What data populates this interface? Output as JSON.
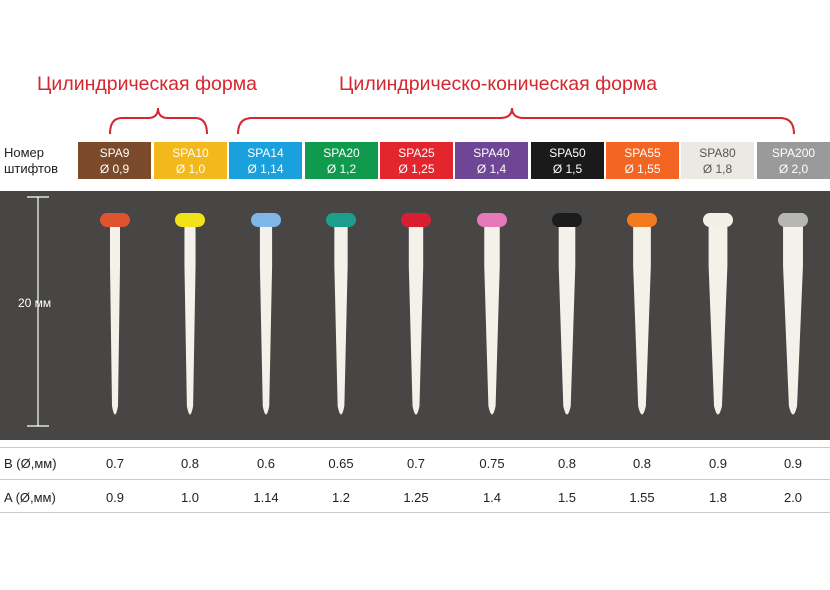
{
  "groups": {
    "cylindrical": "Цилиндрическая форма",
    "conical": "Цилиндрическо-коническая форма"
  },
  "header_label_line1": "Номер",
  "header_label_line2": "штифтов",
  "posts": [
    {
      "code": "SPA9",
      "dia": "Ø 0,9",
      "color": "#7a4a2a",
      "ring": "#e0532f",
      "b": "0.7",
      "a": "0.9"
    },
    {
      "code": "SPA10",
      "dia": "Ø 1,0",
      "color": "#f2b81c",
      "ring": "#f2e21a",
      "b": "0.8",
      "a": "1.0"
    },
    {
      "code": "SPA14",
      "dia": "Ø 1,14",
      "color": "#1aa0dc",
      "ring": "#7fb6e8",
      "b": "0.6",
      "a": "1.14"
    },
    {
      "code": "SPA20",
      "dia": "Ø 1,2",
      "color": "#0f9a4e",
      "ring": "#1d9e8c",
      "b": "0.65",
      "a": "1.2"
    },
    {
      "code": "SPA25",
      "dia": "Ø 1,25",
      "color": "#e3262e",
      "ring": "#d81f32",
      "b": "0.7",
      "a": "1.25"
    },
    {
      "code": "SPA40",
      "dia": "Ø 1,4",
      "color": "#6f4596",
      "ring": "#e67ab8",
      "b": "0.75",
      "a": "1.4"
    },
    {
      "code": "SPA50",
      "dia": "Ø 1,5",
      "color": "#1a1a1a",
      "ring": "#1c1c1c",
      "b": "0.8",
      "a": "1.5"
    },
    {
      "code": "SPA55",
      "dia": "Ø 1,55",
      "color": "#f26522",
      "ring": "#f27a1f",
      "b": "0.8",
      "a": "1.55"
    },
    {
      "code": "SPA80",
      "dia": "Ø 1,8",
      "color": "#ece9e2",
      "ring": "#f0efe8",
      "b": "0.9",
      "a": "1.8"
    },
    {
      "code": "SPA200",
      "dia": "Ø 2,0",
      "color": "#9a9a9a",
      "ring": "#b6b6b2",
      "b": "0.9",
      "a": "2.0"
    }
  ],
  "dimension": "20 мм",
  "row_b_label": "B (Ø,мм)",
  "row_a_label": "A (Ø,мм)"
}
